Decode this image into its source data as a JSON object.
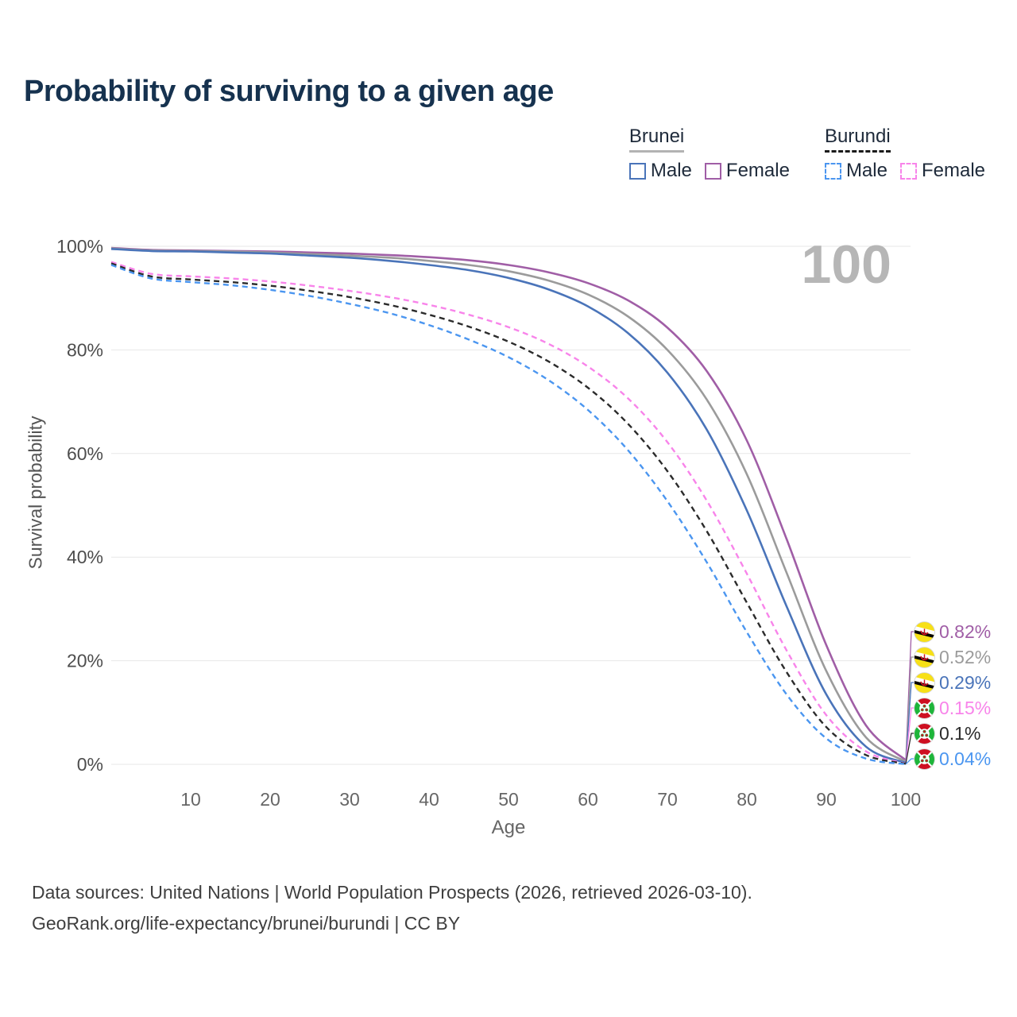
{
  "title": "Probability of surviving to a given age",
  "watermark": "100",
  "legend": {
    "groups": [
      {
        "country": "Brunei",
        "line_style": "solid",
        "items": [
          {
            "label": "Male",
            "color": "#4a74b9",
            "dash": false
          },
          {
            "label": "Female",
            "color": "#a05ea6",
            "dash": false
          }
        ]
      },
      {
        "country": "Burundi",
        "line_style": "dashed",
        "items": [
          {
            "label": "Male",
            "color": "#4b96f0",
            "dash": true
          },
          {
            "label": "Female",
            "color": "#f884ea",
            "dash": true
          }
        ]
      }
    ]
  },
  "chart_data": {
    "type": "line",
    "title": "Probability of surviving to a given age",
    "xlabel": "Age",
    "ylabel": "Survival probability",
    "xlim": [
      0,
      100
    ],
    "ylim": [
      0,
      100
    ],
    "grid": "horizontal",
    "legend_position": "top-right",
    "x_ticks": [
      10,
      20,
      30,
      40,
      50,
      60,
      70,
      80,
      90,
      100
    ],
    "y_ticks": [
      {
        "value": 0,
        "label": "0%"
      },
      {
        "value": 20,
        "label": "20%"
      },
      {
        "value": 40,
        "label": "40%"
      },
      {
        "value": 60,
        "label": "60%"
      },
      {
        "value": 80,
        "label": "80%"
      },
      {
        "value": 100,
        "label": "100%"
      }
    ],
    "x": [
      0,
      5,
      10,
      15,
      20,
      25,
      30,
      35,
      40,
      45,
      50,
      55,
      60,
      65,
      70,
      75,
      80,
      85,
      90,
      95,
      100
    ],
    "series": [
      {
        "name": "Brunei Female",
        "country": "Brunei",
        "sex": "Female",
        "color": "#a05ea6",
        "dash": false,
        "flag": "brunei",
        "end_label": "0.82%",
        "values": [
          99.7,
          99.3,
          99.2,
          99.1,
          99.0,
          98.8,
          98.6,
          98.3,
          97.9,
          97.3,
          96.4,
          95.0,
          92.9,
          89.6,
          84.3,
          75.8,
          62.5,
          43.5,
          23.0,
          7.5,
          0.82
        ]
      },
      {
        "name": "Brunei Both sexes",
        "country": "Brunei",
        "sex": "Both sexes",
        "color": "#9b9b9b",
        "dash": false,
        "flag": "brunei",
        "end_label": "0.52%",
        "values": [
          99.6,
          99.2,
          99.1,
          99.0,
          98.8,
          98.5,
          98.2,
          97.8,
          97.2,
          96.4,
          95.2,
          93.4,
          90.7,
          86.5,
          80.0,
          70.3,
          56.0,
          37.0,
          18.0,
          5.2,
          0.52
        ]
      },
      {
        "name": "Brunei Male",
        "country": "Brunei",
        "sex": "Male",
        "color": "#4a74b9",
        "dash": false,
        "flag": "brunei",
        "end_label": "0.29%",
        "values": [
          99.5,
          99.1,
          99.0,
          98.8,
          98.6,
          98.2,
          97.8,
          97.2,
          96.4,
          95.4,
          93.9,
          91.7,
          88.4,
          83.3,
          75.6,
          64.5,
          49.0,
          30.5,
          13.5,
          3.4,
          0.29
        ]
      },
      {
        "name": "Burundi Female",
        "country": "Burundi",
        "sex": "Female",
        "color": "#f884ea",
        "dash": true,
        "flag": "burundi",
        "end_label": "0.15%",
        "values": [
          97.0,
          94.7,
          94.2,
          93.8,
          93.2,
          92.4,
          91.4,
          90.2,
          88.7,
          86.8,
          84.4,
          81.2,
          76.8,
          70.7,
          62.2,
          50.8,
          36.8,
          22.0,
          9.5,
          2.5,
          0.15
        ]
      },
      {
        "name": "Burundi Both sexes",
        "country": "Burundi",
        "sex": "Both sexes",
        "color": "#2b2b2b",
        "dash": true,
        "flag": "burundi",
        "end_label": "0.1%",
        "values": [
          96.7,
          94.2,
          93.6,
          93.1,
          92.4,
          91.4,
          90.2,
          88.7,
          86.8,
          84.5,
          81.6,
          77.8,
          72.7,
          65.8,
          56.6,
          44.9,
          31.2,
          17.8,
          7.2,
          1.8,
          0.1
        ]
      },
      {
        "name": "Burundi Male",
        "country": "Burundi",
        "sex": "Male",
        "color": "#4b96f0",
        "dash": true,
        "flag": "burundi",
        "end_label": "0.04%",
        "values": [
          96.4,
          93.8,
          93.1,
          92.5,
          91.6,
          90.4,
          88.9,
          87.1,
          84.8,
          82.0,
          78.6,
          74.2,
          68.4,
          60.7,
          50.8,
          38.9,
          25.5,
          13.5,
          5.0,
          1.1,
          0.04
        ]
      }
    ]
  },
  "footer": {
    "line1": "Data sources: United Nations | World Population Prospects (2026, retrieved 2026-03-10).",
    "line2": "GeoRank.org/life-expectancy/brunei/burundi | CC BY"
  }
}
